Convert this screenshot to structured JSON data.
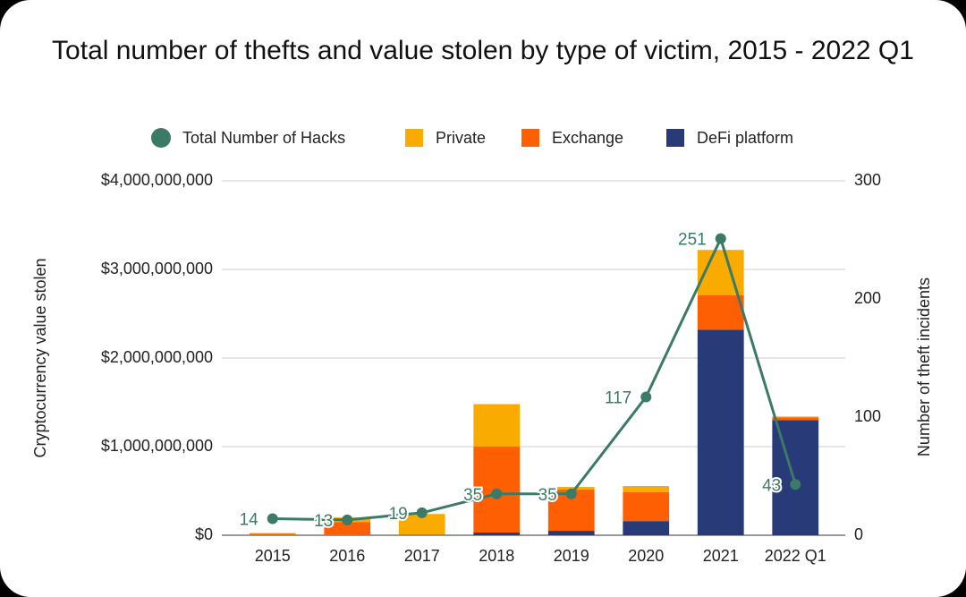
{
  "chart_data": {
    "type": "bar",
    "title": "Total number of thefts and value stolen by type of victim, 2015 - 2022 Q1",
    "y_label": "Cryptocurrency value stolen",
    "y2_label": "Number of theft incidents",
    "categories": [
      "2015",
      "2016",
      "2017",
      "2018",
      "2019",
      "2020",
      "2021",
      "2022 Q1"
    ],
    "series": [
      {
        "name": "Total Number of Hacks",
        "type": "line",
        "axis": "y2",
        "color": "#3b7a66",
        "values": [
          14,
          13,
          19,
          35,
          35,
          117,
          251,
          43
        ]
      },
      {
        "name": "Private",
        "type": "bar",
        "color": "#f9ab00",
        "values": [
          10000000,
          50000000,
          230000000,
          480000000,
          30000000,
          70000000,
          510000000,
          10000000
        ]
      },
      {
        "name": "Exchange",
        "type": "bar",
        "color": "#ff5f03",
        "values": [
          15000000,
          150000000,
          10000000,
          970000000,
          465000000,
          325000000,
          390000000,
          30000000
        ]
      },
      {
        "name": "DeFi platform",
        "type": "bar",
        "color": "#293a78",
        "values": [
          0,
          0,
          0,
          30000000,
          50000000,
          160000000,
          2320000000,
          1300000000
        ]
      }
    ],
    "ylim": [
      0,
      4000000000
    ],
    "yticks": [
      {
        "value": 0,
        "label": "$0"
      },
      {
        "value": 1000000000,
        "label": "$1,000,000,000"
      },
      {
        "value": 2000000000,
        "label": "$2,000,000,000"
      },
      {
        "value": 3000000000,
        "label": "$3,000,000,000"
      },
      {
        "value": 4000000000,
        "label": "$4,000,000,000"
      }
    ],
    "y2lim": [
      0,
      300
    ],
    "y2ticks": [
      0,
      100,
      200,
      300
    ],
    "grid": true,
    "legend": "top"
  }
}
